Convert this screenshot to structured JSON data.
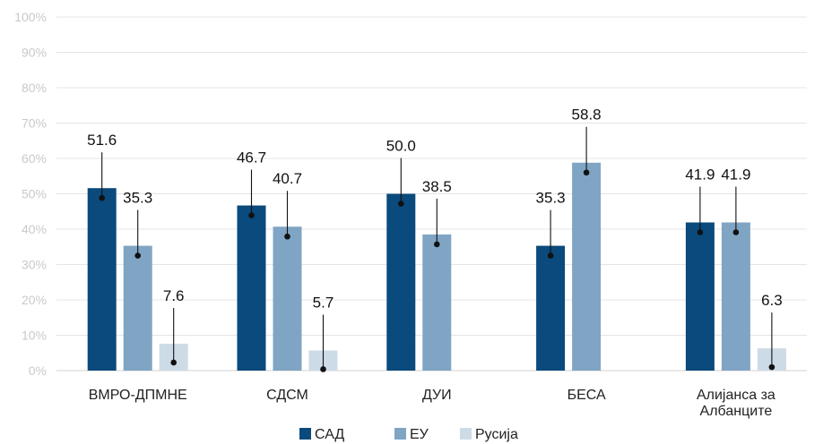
{
  "chart_data": {
    "type": "bar",
    "categories": [
      "ВМРО-ДПМНЕ",
      "СДСМ",
      "ДУИ",
      "БЕСА",
      "Алијанса за\nАлбанците"
    ],
    "series": [
      {
        "name": "САД",
        "color": "#0a4a7c",
        "values": [
          51.6,
          46.7,
          50.0,
          35.3,
          41.9
        ]
      },
      {
        "name": "ЕУ",
        "color": "#7fa4c4",
        "values": [
          35.3,
          40.7,
          38.5,
          58.8,
          41.9
        ]
      },
      {
        "name": "Русија",
        "color": "#cddbe7",
        "values": [
          7.6,
          5.7,
          null,
          null,
          6.3
        ]
      }
    ],
    "y_ticks": [
      "0%",
      "10%",
      "20%",
      "30%",
      "40%",
      "50%",
      "60%",
      "70%",
      "80%",
      "90%",
      "100%"
    ],
    "ylim": [
      0,
      100
    ],
    "grid": true,
    "legend_position": "bottom",
    "data_labels": true
  }
}
